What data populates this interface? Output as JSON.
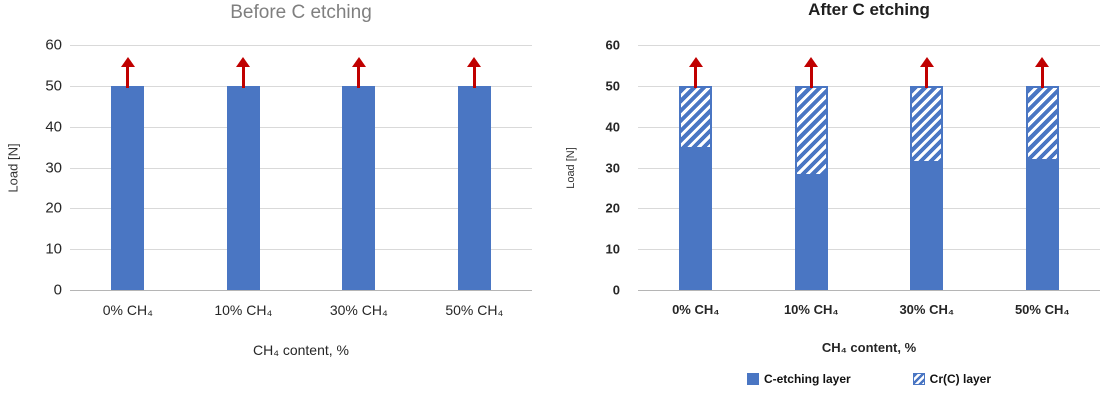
{
  "page": {
    "background": "#ffffff"
  },
  "colors": {
    "bar_blue": "#4a76c3",
    "hatch_stripe_white": "#ffffff",
    "arrow_red": "#c00000",
    "gridline_gray": "#d9d9d9",
    "left_title_gray": "#7f7f7f",
    "right_title_black": "#1f1f1f"
  },
  "chart_data": [
    {
      "type": "bar",
      "title": "Before C etching",
      "ylabel": "Load [N]",
      "xlabel": "CH₄ content, %",
      "categories": [
        "0% CH₄",
        "10% CH₄",
        "30% CH₄",
        "50% CH₄"
      ],
      "series": [
        {
          "name": "Load",
          "style": "solid",
          "values": [
            50,
            50,
            50,
            50
          ]
        }
      ],
      "ylim": [
        0,
        60
      ],
      "yticks": [
        0,
        10,
        20,
        30,
        40,
        50,
        60
      ],
      "grid": true,
      "legend": null,
      "arrows_above_bars": [
        true,
        true,
        true,
        true
      ]
    },
    {
      "type": "stacked-bar",
      "title": "After C etching",
      "ylabel": "Load [N]",
      "xlabel": "CH₄ content, %",
      "categories": [
        "0% CH₄",
        "10% CH₄",
        "30% CH₄",
        "50% CH₄"
      ],
      "series": [
        {
          "name": "C-etching layer",
          "style": "solid",
          "values": [
            35,
            28.5,
            31.5,
            32
          ]
        },
        {
          "name": "Cr(C) layer",
          "style": "hatch",
          "values": [
            15,
            21.5,
            18.5,
            18
          ]
        }
      ],
      "stack_totals": [
        50,
        50,
        50,
        50
      ],
      "ylim": [
        0,
        60
      ],
      "yticks": [
        0,
        10,
        20,
        30,
        40,
        50,
        60
      ],
      "grid": true,
      "legend": {
        "position": "bottom",
        "entries": [
          "C-etching layer",
          "Cr(C) layer"
        ]
      },
      "arrows_above_bars": [
        true,
        true,
        true,
        true
      ]
    }
  ]
}
